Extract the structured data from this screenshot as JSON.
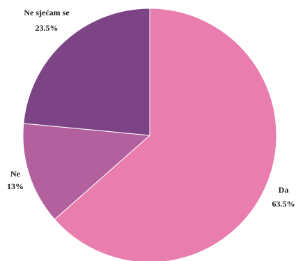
{
  "chart_data": {
    "type": "pie",
    "start_angle_deg": 0,
    "direction": "clockwise",
    "slices": [
      {
        "label": "Da",
        "value": 63.5,
        "value_label": "63.5%",
        "color": "#E87DAE"
      },
      {
        "label": "Ne",
        "value": 13,
        "value_label": "13%",
        "color": "#B3609E"
      },
      {
        "label": "Ne sjećam se",
        "value": 23.5,
        "value_label": "23.5%",
        "color": "#7C4385"
      }
    ]
  }
}
